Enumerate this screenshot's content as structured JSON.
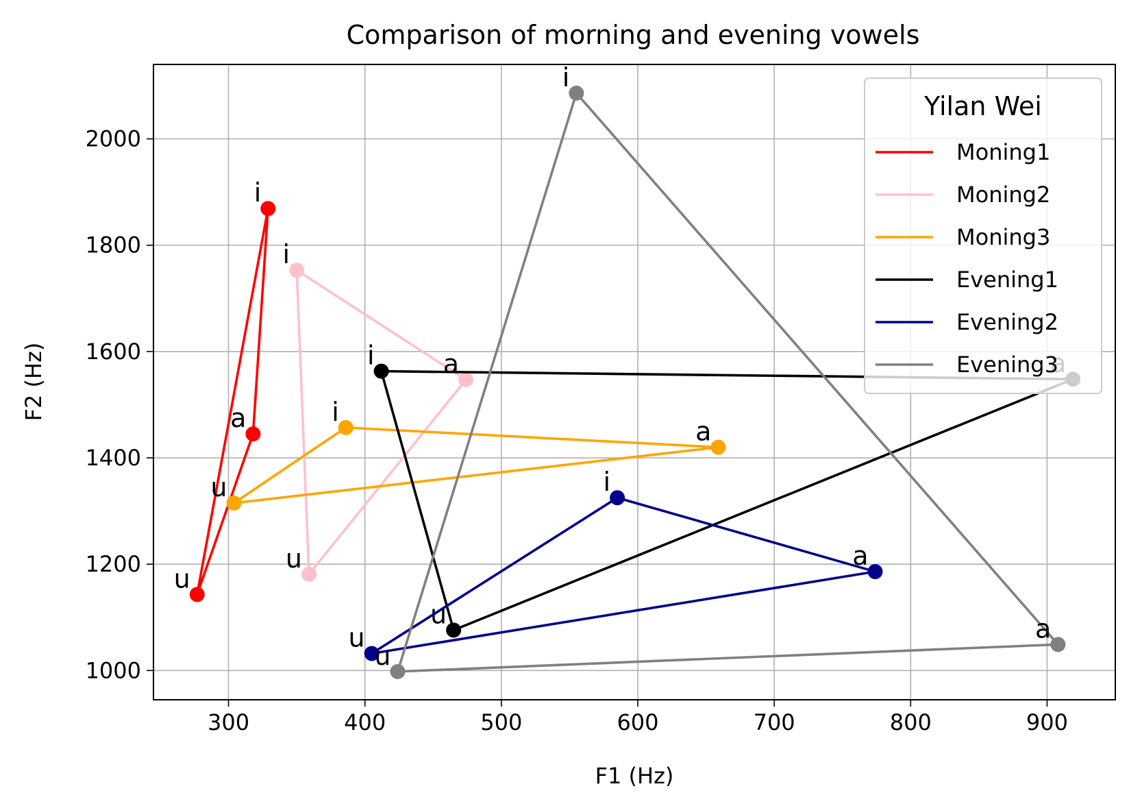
{
  "chart_data": {
    "type": "line",
    "title": "Comparison of morning and evening vowels",
    "xlabel": "F1 (Hz)",
    "ylabel": "F2 (Hz)",
    "xlim": [
      245,
      950
    ],
    "ylim": [
      945,
      2140
    ],
    "xticks": [
      300,
      400,
      500,
      600,
      700,
      800,
      900
    ],
    "yticks": [
      1000,
      1200,
      1400,
      1600,
      1800,
      2000
    ],
    "grid": true,
    "legend": {
      "title": "Yilan Wei",
      "placement": "top-right"
    },
    "series": [
      {
        "name": "Moning1",
        "color": "#ff0000",
        "points": [
          {
            "label": "i",
            "f1": 329,
            "f2": 1869
          },
          {
            "label": "a",
            "f1": 318,
            "f2": 1445
          },
          {
            "label": "u",
            "f1": 277,
            "f2": 1143
          }
        ]
      },
      {
        "name": "Moning2",
        "color": "#ffc0cb",
        "points": [
          {
            "label": "i",
            "f1": 350,
            "f2": 1753
          },
          {
            "label": "a",
            "f1": 474,
            "f2": 1547
          },
          {
            "label": "u",
            "f1": 359,
            "f2": 1181
          }
        ]
      },
      {
        "name": "Moning3",
        "color": "#ffa500",
        "points": [
          {
            "label": "i",
            "f1": 386,
            "f2": 1457
          },
          {
            "label": "a",
            "f1": 659,
            "f2": 1420
          },
          {
            "label": "u",
            "f1": 304,
            "f2": 1315
          }
        ]
      },
      {
        "name": "Evening1",
        "color": "#000000",
        "points": [
          {
            "label": "i",
            "f1": 412,
            "f2": 1563
          },
          {
            "label": "a",
            "f1": 919,
            "f2": 1548
          },
          {
            "label": "u",
            "f1": 465,
            "f2": 1076
          }
        ]
      },
      {
        "name": "Evening2",
        "color": "#00008b",
        "points": [
          {
            "label": "i",
            "f1": 585,
            "f2": 1325
          },
          {
            "label": "a",
            "f1": 774,
            "f2": 1186
          },
          {
            "label": "u",
            "f1": 405,
            "f2": 1032
          }
        ]
      },
      {
        "name": "Evening3",
        "color": "#808080",
        "points": [
          {
            "label": "i",
            "f1": 555,
            "f2": 2086
          },
          {
            "label": "a",
            "f1": 908,
            "f2": 1049
          },
          {
            "label": "u",
            "f1": 424,
            "f2": 998
          }
        ]
      }
    ]
  }
}
